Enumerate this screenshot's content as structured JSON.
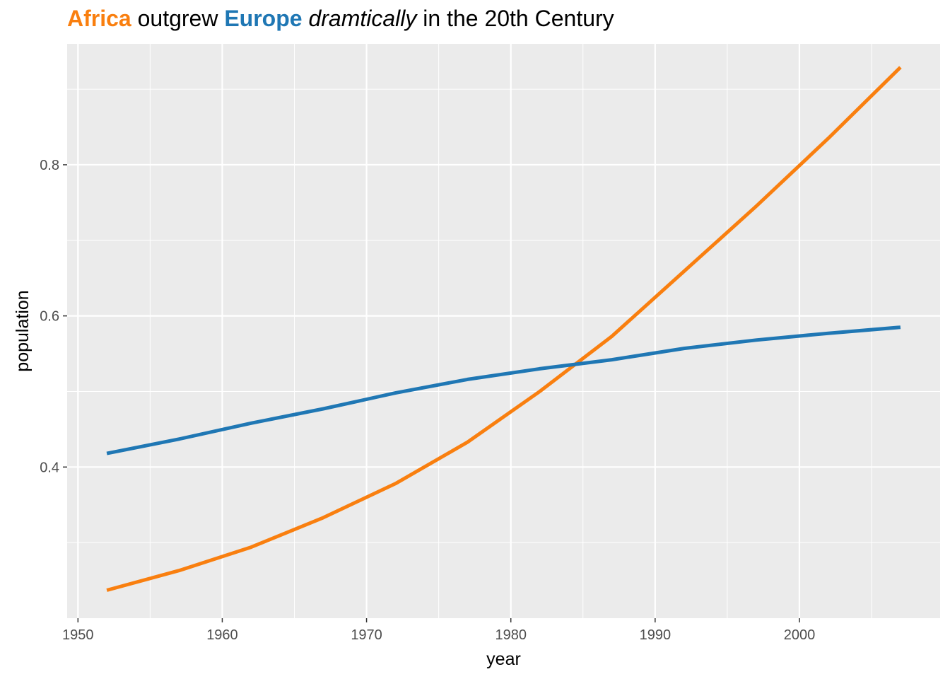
{
  "title": {
    "part1": "Africa",
    "part2": " outgrew ",
    "part3": "Europe",
    "part4": " ",
    "part5": "dramtically",
    "part6": " in the 20th Century"
  },
  "colors": {
    "africa": "#F97F0F",
    "europe": "#1F77B4",
    "panel": "#EBEBEB",
    "grid": "#FFFFFF"
  },
  "chart_data": {
    "type": "line",
    "xlabel": "year",
    "ylabel": "population",
    "xlim": [
      1949.25,
      2009.75
    ],
    "ylim": [
      0.2,
      0.96
    ],
    "x_major_ticks": [
      1950,
      1960,
      1970,
      1980,
      1990,
      2000
    ],
    "x_minor_ticks": [
      1955,
      1965,
      1975,
      1985,
      1995,
      2005
    ],
    "y_major_ticks": [
      0.4,
      0.6,
      0.8
    ],
    "y_minor_ticks": [
      0.3,
      0.5,
      0.7,
      0.9
    ],
    "x_tick_labels": [
      "1950",
      "1960",
      "1970",
      "1980",
      "1990",
      "2000"
    ],
    "y_tick_labels": [
      "0.4",
      "0.6",
      "0.8"
    ],
    "grid": true,
    "legend": "none",
    "x": [
      1952,
      1957,
      1962,
      1967,
      1972,
      1977,
      1982,
      1987,
      1992,
      1997,
      2002,
      2007
    ],
    "series": [
      {
        "color": "#F97F0F",
        "values": [
          0.237,
          0.263,
          0.294,
          0.333,
          0.378,
          0.433,
          0.5,
          0.573,
          0.659,
          0.745,
          0.835,
          0.929
        ]
      },
      {
        "color": "#1F77B4",
        "values": [
          0.418,
          0.437,
          0.458,
          0.477,
          0.498,
          0.516,
          0.53,
          0.542,
          0.557,
          0.568,
          0.577,
          0.585
        ]
      }
    ]
  }
}
